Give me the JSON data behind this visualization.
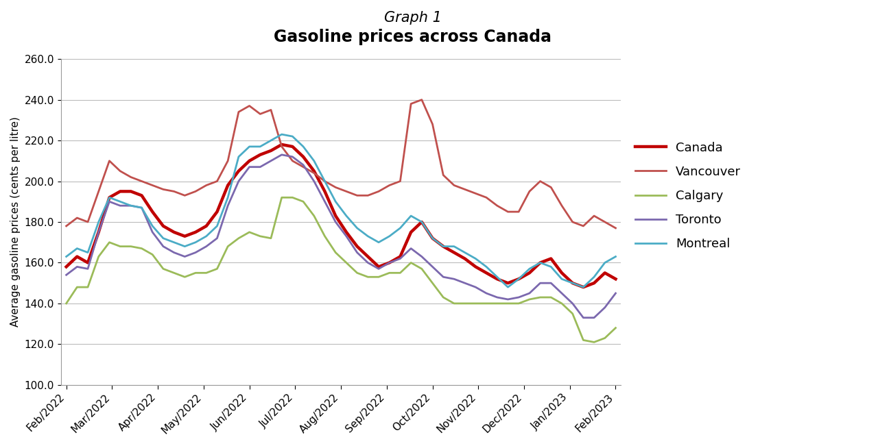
{
  "title_line1": "Graph 1",
  "title_line2": "Gasoline prices across Canada",
  "ylabel": "Average gasoline prices (cents per litre)",
  "ylim": [
    100.0,
    260.0
  ],
  "yticks": [
    100.0,
    120.0,
    140.0,
    160.0,
    180.0,
    200.0,
    220.0,
    240.0,
    260.0
  ],
  "x_labels": [
    "Feb/2022",
    "Mar/2022",
    "Apr/2022",
    "May/2022",
    "Jun/2022",
    "Jul/2022",
    "Aug/2022",
    "Sep/2022",
    "Oct/2022",
    "Nov/2022",
    "Dec/2022",
    "Jan/2023",
    "Feb/2023"
  ],
  "n_points": 52,
  "background_color": "#FFFFFF",
  "grid_color": "#BBBBBB",
  "title_fontsize_line1": 15,
  "title_fontsize_line2": 17,
  "ylabel_fontsize": 11,
  "tick_fontsize": 11,
  "series": [
    {
      "name": "Canada",
      "color": "#C00000",
      "linewidth": 3.2,
      "values": [
        158,
        163,
        160,
        175,
        192,
        195,
        195,
        193,
        185,
        178,
        175,
        173,
        175,
        178,
        185,
        198,
        205,
        210,
        213,
        215,
        218,
        217,
        212,
        205,
        195,
        183,
        175,
        168,
        163,
        158,
        160,
        163,
        175,
        180,
        172,
        168,
        165,
        162,
        158,
        155,
        152,
        150,
        152,
        155,
        160,
        162,
        155,
        150,
        148,
        150,
        155,
        152
      ]
    },
    {
      "name": "Vancouver",
      "color": "#C0504D",
      "linewidth": 2.0,
      "values": [
        178,
        182,
        180,
        195,
        210,
        205,
        202,
        200,
        198,
        196,
        195,
        193,
        195,
        198,
        200,
        210,
        234,
        237,
        233,
        235,
        217,
        210,
        207,
        204,
        200,
        197,
        195,
        193,
        193,
        195,
        198,
        200,
        238,
        240,
        228,
        203,
        198,
        196,
        194,
        192,
        188,
        185,
        185,
        195,
        200,
        197,
        188,
        180,
        178,
        183,
        180,
        177
      ]
    },
    {
      "name": "Calgary",
      "color": "#9BBB59",
      "linewidth": 2.0,
      "values": [
        140,
        148,
        148,
        163,
        170,
        168,
        168,
        167,
        164,
        157,
        155,
        153,
        155,
        155,
        157,
        168,
        172,
        175,
        173,
        172,
        192,
        192,
        190,
        183,
        173,
        165,
        160,
        155,
        153,
        153,
        155,
        155,
        160,
        157,
        150,
        143,
        140,
        140,
        140,
        140,
        140,
        140,
        140,
        142,
        143,
        143,
        140,
        135,
        122,
        121,
        123,
        128
      ]
    },
    {
      "name": "Toronto",
      "color": "#7B68AE",
      "linewidth": 2.0,
      "values": [
        154,
        158,
        157,
        175,
        190,
        188,
        188,
        187,
        175,
        168,
        165,
        163,
        165,
        168,
        172,
        188,
        200,
        207,
        207,
        210,
        213,
        212,
        208,
        200,
        190,
        180,
        173,
        165,
        160,
        157,
        160,
        162,
        167,
        163,
        158,
        153,
        152,
        150,
        148,
        145,
        143,
        142,
        143,
        145,
        150,
        150,
        145,
        140,
        133,
        133,
        138,
        145
      ]
    },
    {
      "name": "Montreal",
      "color": "#4BACC6",
      "linewidth": 2.0,
      "values": [
        163,
        167,
        165,
        180,
        192,
        190,
        188,
        187,
        178,
        172,
        170,
        168,
        170,
        173,
        178,
        192,
        212,
        217,
        217,
        220,
        223,
        222,
        217,
        210,
        200,
        190,
        183,
        177,
        173,
        170,
        173,
        177,
        183,
        180,
        172,
        168,
        168,
        165,
        162,
        158,
        153,
        148,
        152,
        157,
        160,
        158,
        152,
        150,
        148,
        153,
        160,
        163
      ]
    }
  ]
}
